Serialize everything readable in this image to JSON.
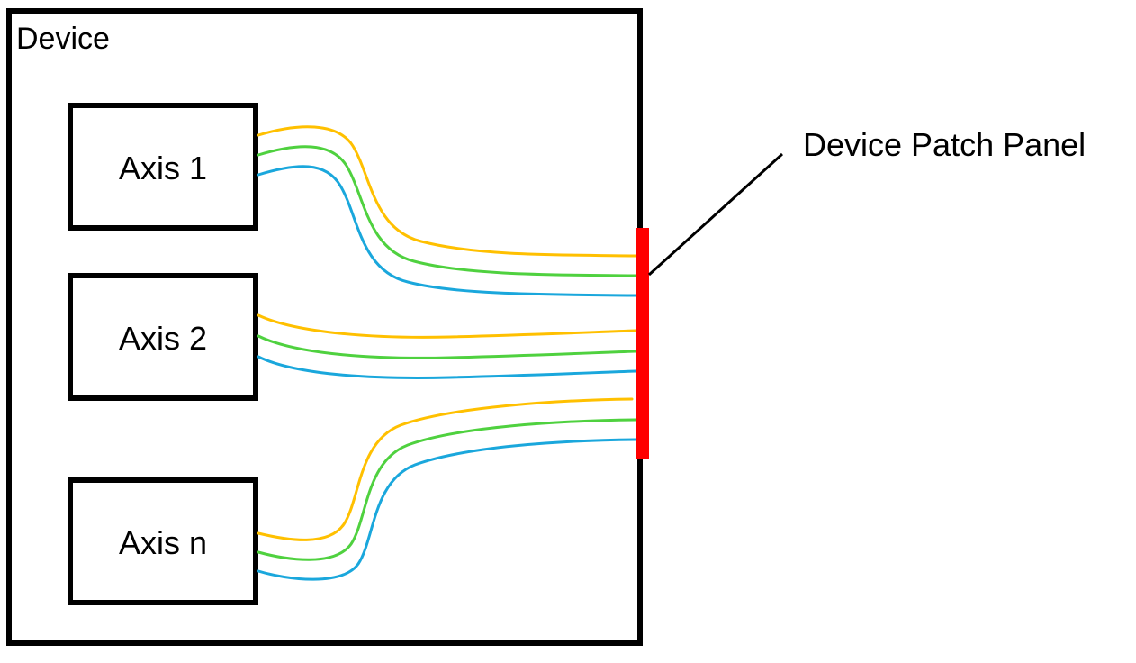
{
  "device": {
    "label": "Device"
  },
  "axes": [
    {
      "label": "Axis 1"
    },
    {
      "label": "Axis 2"
    },
    {
      "label": "Axis n"
    }
  ],
  "patch_panel": {
    "label": "Device Patch Panel",
    "color": "#ff0000"
  },
  "wire_colors": [
    "#ffc000",
    "#4fd13f",
    "#1aa7dc"
  ]
}
